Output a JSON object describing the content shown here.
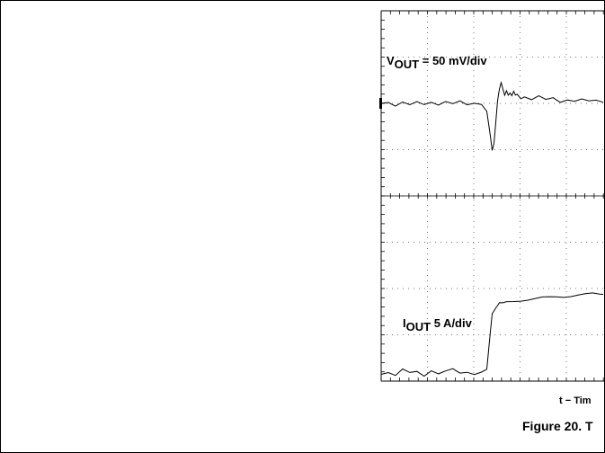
{
  "chart_data": {
    "type": "line",
    "title": "Figure 20. T",
    "xlabel": "t − Tim",
    "grid": true,
    "series": [
      {
        "name": "V_OUT = 50 mV/div",
        "scale": "50 mV/div",
        "x": [
          0,
          8,
          16,
          24,
          32,
          40,
          48,
          56,
          64,
          72,
          80,
          88,
          96,
          104,
          112,
          118,
          122,
          124,
          126,
          128,
          130,
          132,
          134,
          136,
          138,
          140,
          142,
          144,
          146,
          148,
          150,
          152,
          156,
          160,
          168,
          176,
          184,
          192,
          200,
          208,
          216,
          224,
          232,
          240,
          248
        ],
        "y": [
          0,
          0.05,
          -0.05,
          0.04,
          -0.06,
          0.02,
          -0.04,
          0.05,
          -0.02,
          0.06,
          -0.03,
          0.04,
          -0.05,
          0.02,
          0,
          -0.2,
          -0.9,
          -1.3,
          -1.1,
          -0.5,
          0.1,
          0.4,
          0.55,
          0.35,
          0.2,
          0.35,
          0.25,
          0.3,
          0.2,
          0.3,
          0.2,
          0.25,
          0.15,
          0.2,
          0.1,
          0.18,
          0.08,
          0.15,
          0.05,
          0.12,
          0.06,
          0.1,
          0.04,
          0.08,
          0.05
        ]
      },
      {
        "name": "I_OUT 5 A/div",
        "scale": "5 A/div",
        "x": [
          0,
          8,
          16,
          24,
          32,
          40,
          48,
          56,
          64,
          72,
          80,
          88,
          96,
          104,
          112,
          118,
          122,
          124,
          126,
          128,
          130,
          132,
          136,
          140,
          148,
          156,
          164,
          172,
          180,
          188,
          196,
          204,
          212,
          220,
          228,
          236,
          244,
          248
        ],
        "y": [
          -2.1,
          -2.05,
          -2.15,
          -2.0,
          -2.1,
          -2.05,
          -2.15,
          -2.0,
          -2.1,
          -2.05,
          -2.0,
          -2.1,
          -2.05,
          -2.1,
          -2.05,
          -2.0,
          -1.0,
          -0.5,
          -0.4,
          -0.3,
          -0.25,
          -0.2,
          -0.22,
          -0.18,
          -0.15,
          -0.12,
          -0.1,
          -0.08,
          -0.06,
          -0.05,
          -0.03,
          -0.02,
          0,
          0.02,
          0.03,
          0.05,
          0.04,
          0.06
        ]
      }
    ],
    "grid_divisions": {
      "x": 10,
      "y": 8
    }
  },
  "labels": {
    "vout_main": "V",
    "vout_sub": "OUT",
    "vout_rest": " = 50 mV/div",
    "iout_main": "I",
    "iout_sub": "OUT",
    "iout_rest": " 5 A/div"
  }
}
